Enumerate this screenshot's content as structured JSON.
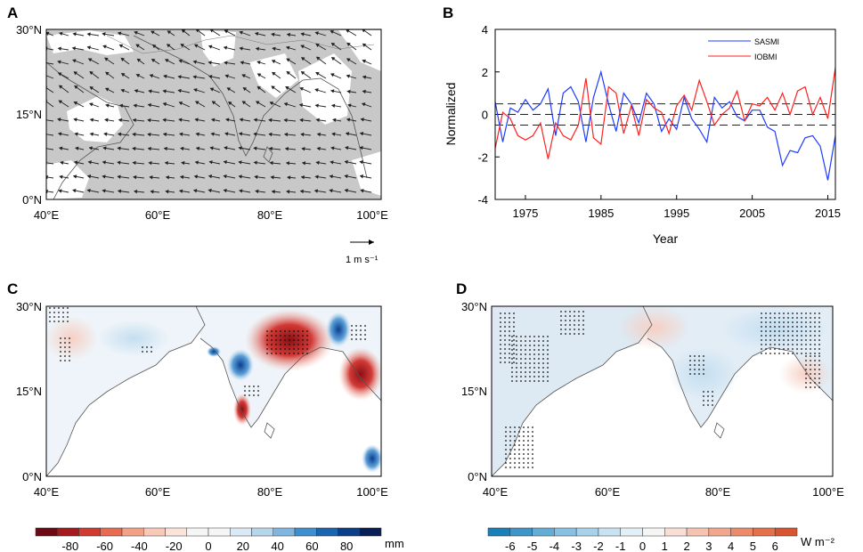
{
  "chart_data": [
    {
      "panel": "A",
      "type": "vector-map",
      "x_ticks": [
        "40°E",
        "60°E",
        "80°E",
        "100°E"
      ],
      "y_ticks": [
        "0°N",
        "15°N",
        "30°N"
      ],
      "lon_range": [
        40,
        100
      ],
      "lat_range": [
        0,
        30
      ],
      "reference_vector": "1 m s⁻¹",
      "shading": "significant regions shaded gray"
    },
    {
      "panel": "B",
      "type": "line",
      "ylabel": "Normalized",
      "xlabel": "Year",
      "x_ticks": [
        "1975",
        "1985",
        "1995",
        "2005",
        "2015"
      ],
      "x_tick_values": [
        1975,
        1985,
        1995,
        2005,
        2015
      ],
      "y_ticks": [
        "-4",
        "-2",
        "0",
        "2",
        "4"
      ],
      "y_tick_values": [
        -4,
        -2,
        0,
        2,
        4
      ],
      "xlim": [
        1971,
        2016
      ],
      "ylim": [
        -4,
        4
      ],
      "reference_lines": [
        0.5,
        0,
        -0.5
      ],
      "x": [
        1971,
        1972,
        1973,
        1974,
        1975,
        1976,
        1977,
        1978,
        1979,
        1980,
        1981,
        1982,
        1983,
        1984,
        1985,
        1986,
        1987,
        1988,
        1989,
        1990,
        1991,
        1992,
        1993,
        1994,
        1995,
        1996,
        1997,
        1998,
        1999,
        2000,
        2001,
        2002,
        2003,
        2004,
        2005,
        2006,
        2007,
        2008,
        2009,
        2010,
        2011,
        2012,
        2013,
        2014,
        2015,
        2016
      ],
      "series": [
        {
          "name": "SASMI",
          "color": "#1f3cff",
          "values": [
            0.6,
            -1.3,
            0.3,
            0.1,
            0.7,
            0.2,
            0.5,
            1.2,
            -1.0,
            1.0,
            1.3,
            0.6,
            -1.3,
            0.8,
            2.0,
            0.5,
            -0.8,
            1.0,
            0.5,
            -0.4,
            1.0,
            0.5,
            -0.8,
            -0.2,
            -0.7,
            0.8,
            -0.2,
            -0.7,
            -1.3,
            0.8,
            0.3,
            0.6,
            -0.1,
            -0.3,
            0.2,
            0.2,
            -0.6,
            -0.8,
            -2.4,
            -1.7,
            -1.8,
            -1.1,
            -1.0,
            -1.5,
            -3.1,
            -1.0
          ]
        },
        {
          "name": "IOBMI",
          "color": "#ff2020",
          "values": [
            -1.6,
            0.1,
            -0.2,
            -1.0,
            -1.2,
            -1.0,
            -0.4,
            -2.1,
            -0.4,
            -1.0,
            -1.2,
            -0.5,
            1.7,
            -1.1,
            -1.4,
            1.3,
            1.0,
            -0.9,
            0.4,
            -1.0,
            0.7,
            0.3,
            0.1,
            -0.9,
            0.4,
            0.9,
            0.2,
            1.6,
            0.6,
            -0.5,
            0.0,
            0.3,
            1.1,
            -0.3,
            0.5,
            0.4,
            0.8,
            0.2,
            1.0,
            0.0,
            1.1,
            1.3,
            0.0,
            0.8,
            -0.2,
            2.2
          ]
        }
      ]
    },
    {
      "panel": "C",
      "type": "heatmap",
      "x_ticks": [
        "40°E",
        "60°E",
        "80°E",
        "100°E"
      ],
      "y_ticks": [
        "0°N",
        "15°N",
        "30°N"
      ],
      "colorbar_labels": [
        "-80",
        "-60",
        "-40",
        "-20",
        "0",
        "20",
        "40",
        "60",
        "80"
      ],
      "colorbar_unit": "mm"
    },
    {
      "panel": "D",
      "type": "heatmap",
      "x_ticks": [
        "40°E",
        "60°E",
        "80°E",
        "100°E"
      ],
      "y_ticks": [
        "0°N",
        "15°N",
        "30°N"
      ],
      "colorbar_labels": [
        "-6",
        "-5",
        "-4",
        "-3",
        "-2",
        "-1",
        "0",
        "1",
        "2",
        "3",
        "4",
        "5",
        "6"
      ],
      "colorbar_unit": "W m⁻²"
    }
  ],
  "colors": {
    "shading_gray": "#c8c8c8",
    "land": "#c0c0c0",
    "negative_deep": "#8b0f16",
    "positive_deep": "#0a2a6b"
  }
}
